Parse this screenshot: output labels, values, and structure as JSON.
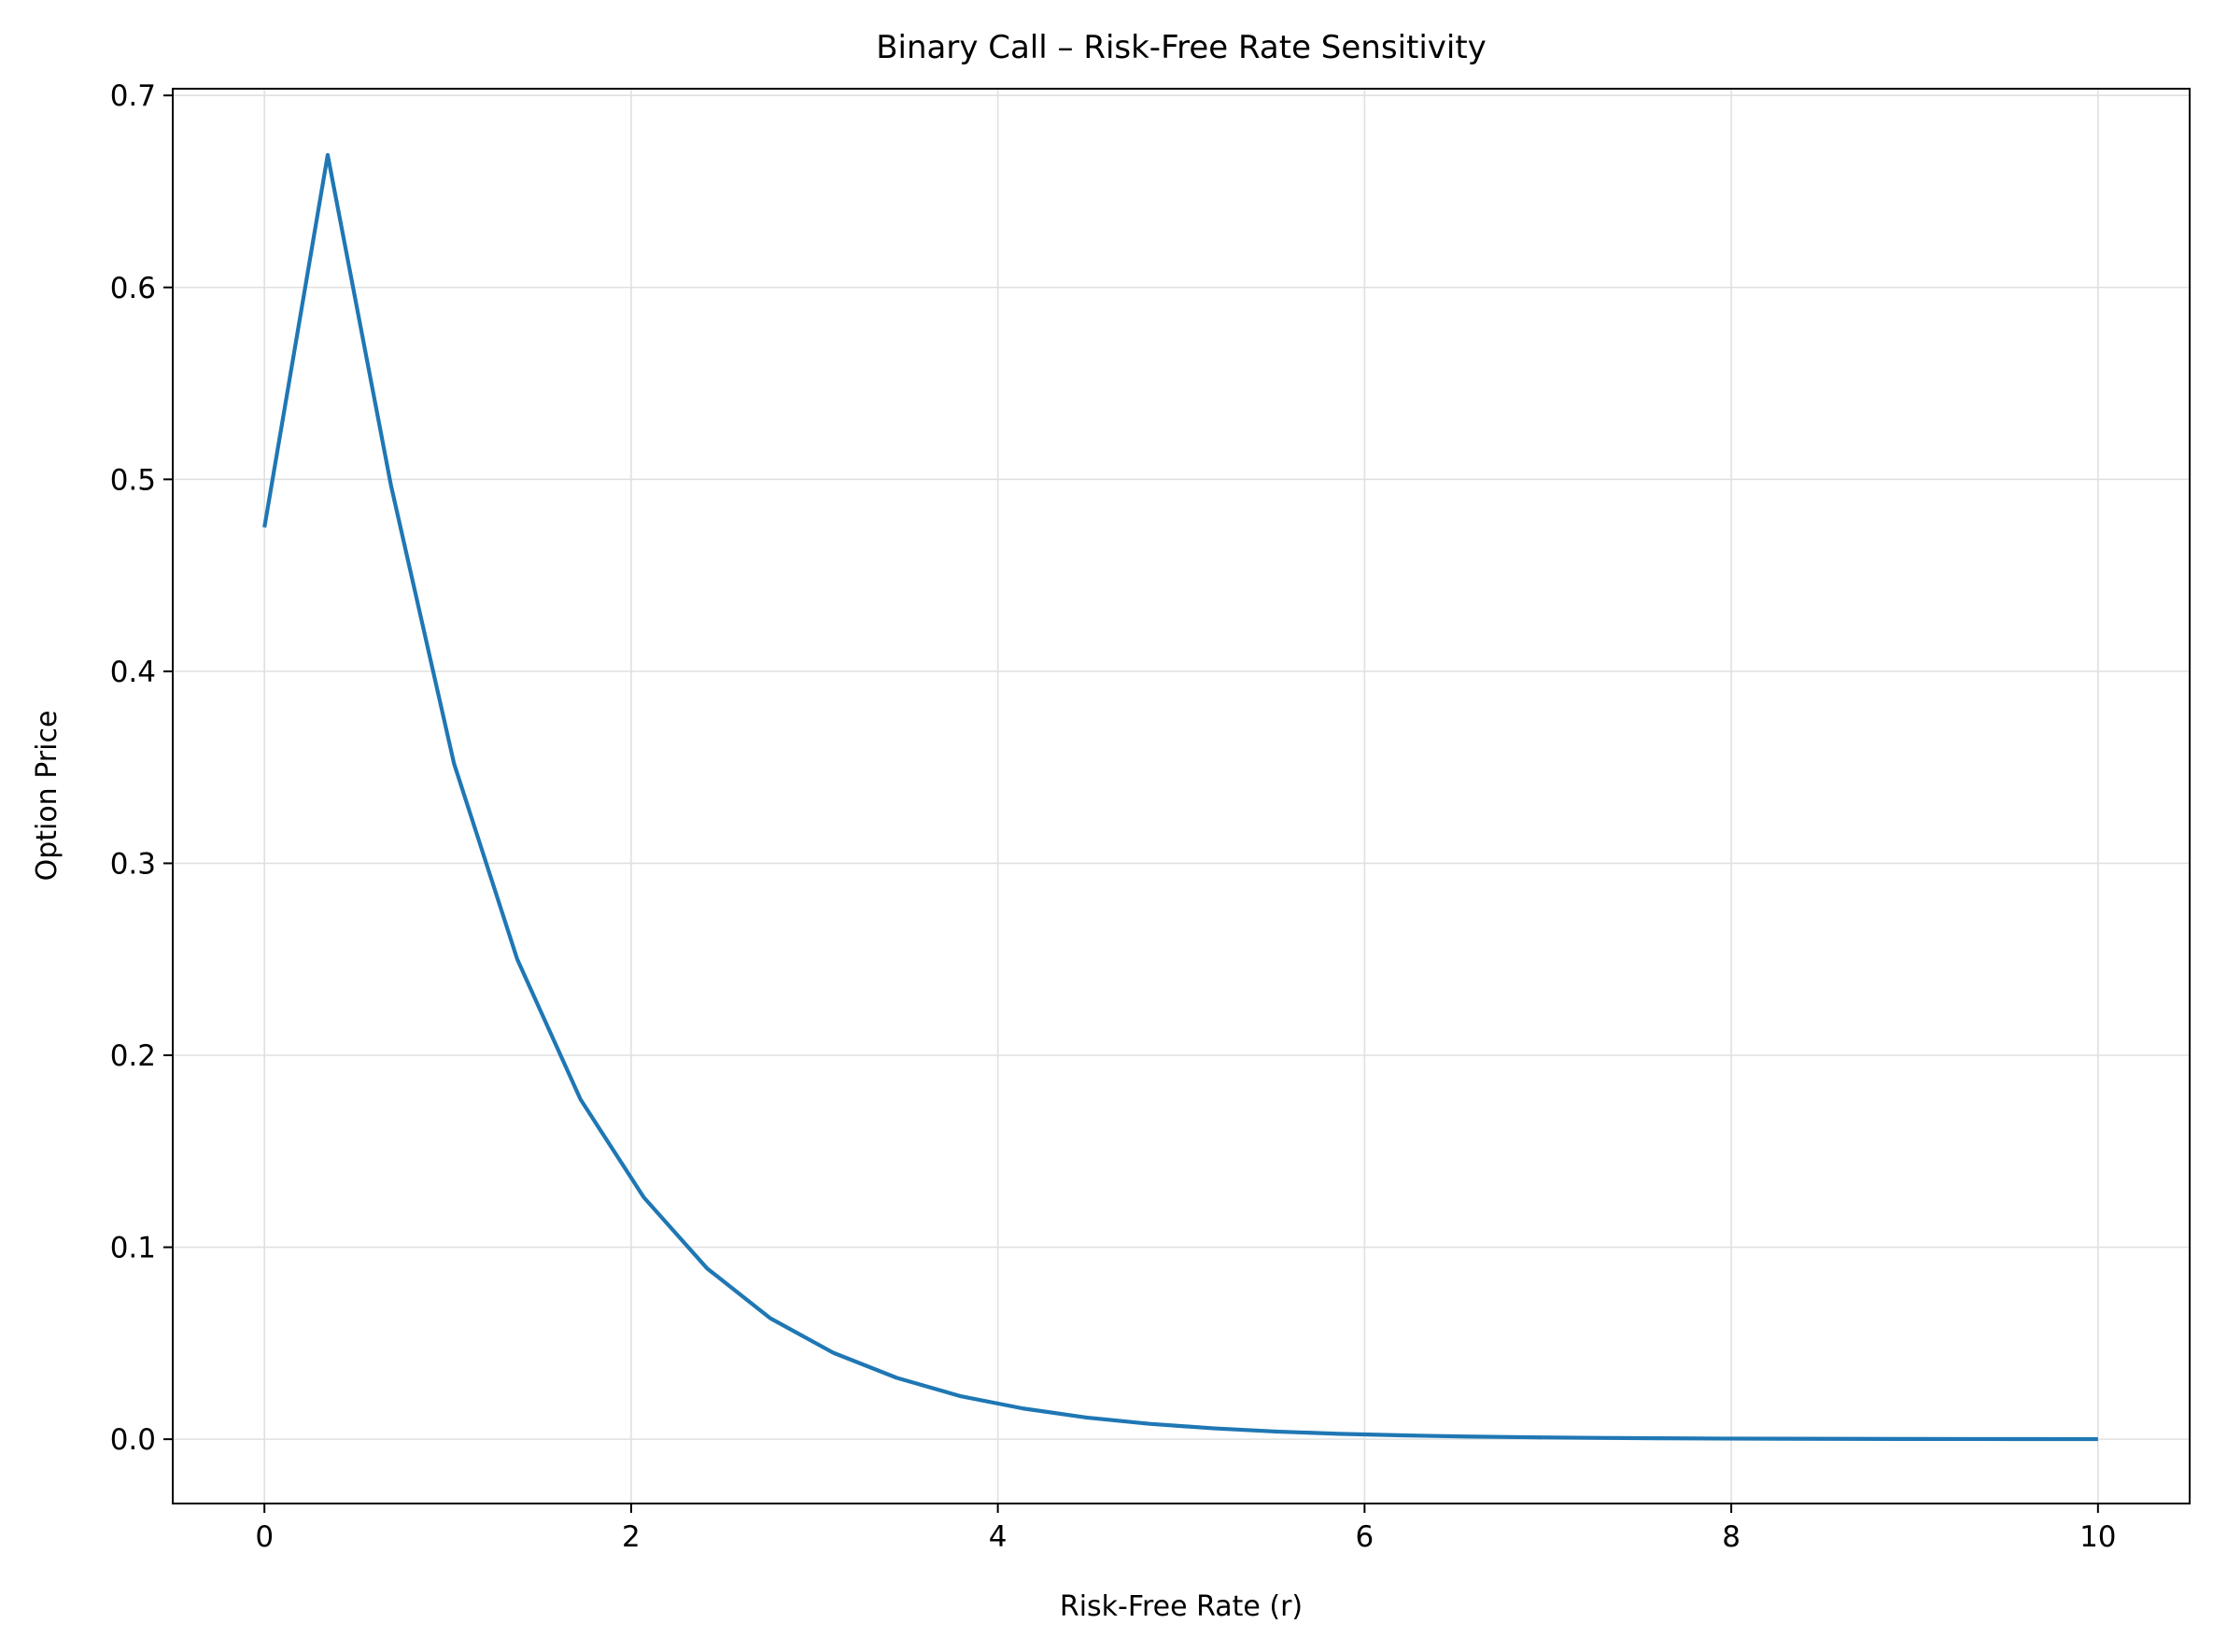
{
  "chart_data": {
    "type": "line",
    "title": "Binary Call – Risk-Free Rate Sensitivity",
    "xlabel": "Risk-Free Rate (r)",
    "ylabel": "Option Price",
    "xlim": [
      -0.5,
      10.5
    ],
    "ylim": [
      -0.0335,
      0.7035
    ],
    "x_ticks": [
      0,
      2,
      4,
      6,
      8,
      10
    ],
    "x_tick_labels": [
      "0",
      "2",
      "4",
      "6",
      "8",
      "10"
    ],
    "y_ticks": [
      0.0,
      0.1,
      0.2,
      0.3,
      0.4,
      0.5,
      0.6,
      0.7
    ],
    "y_tick_labels": [
      "0.0",
      "0.1",
      "0.2",
      "0.3",
      "0.4",
      "0.5",
      "0.6",
      "0.7"
    ],
    "grid": true,
    "legend": false,
    "series": [
      {
        "color": "#1f77b4",
        "x": [
          0.0,
          0.345,
          0.69,
          1.034,
          1.379,
          1.724,
          2.069,
          2.414,
          2.759,
          3.103,
          3.448,
          3.793,
          4.138,
          4.483,
          4.828,
          5.172,
          5.517,
          5.862,
          6.207,
          6.552,
          6.897,
          7.241,
          7.586,
          7.931,
          8.276,
          8.621,
          8.966,
          9.31,
          9.655,
          10.0
        ],
        "y": [
          0.475,
          0.669,
          0.497,
          0.352,
          0.25,
          0.177,
          0.126,
          0.089,
          0.063,
          0.045,
          0.032,
          0.0225,
          0.016,
          0.0113,
          0.008,
          0.0057,
          0.004,
          0.0028,
          0.002,
          0.0014,
          0.001,
          0.0007,
          0.0005,
          0.00035,
          0.00025,
          0.00018,
          0.00013,
          9e-05,
          6e-05,
          4e-05
        ]
      }
    ]
  }
}
